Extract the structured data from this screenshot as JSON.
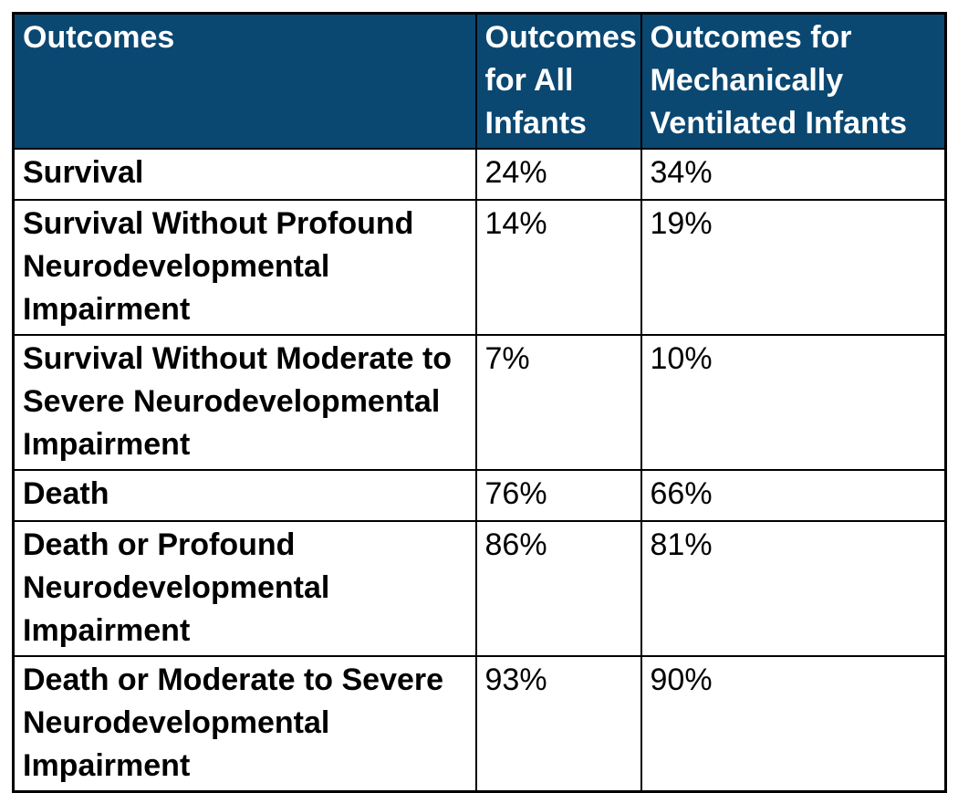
{
  "table": {
    "header": {
      "outcomes": "Outcomes",
      "all_infants": "Outcomes\nfor All\nInfants",
      "ventilated_infants": "Outcomes for\nMechanically\nVentilated Infants"
    },
    "rows": [
      {
        "outcome": "Survival",
        "all": "24%",
        "vent": "34%"
      },
      {
        "outcome": "Survival Without Profound\nNeurodevelopmental\nImpairment",
        "all": "14%",
        "vent": "19%"
      },
      {
        "outcome": "Survival Without Moderate to\nSevere Neurodevelopmental\nImpairment",
        "all": "7%",
        "vent": "10%"
      },
      {
        "outcome": "Death",
        "all": "76%",
        "vent": "66%"
      },
      {
        "outcome": "Death or Profound\nNeurodevelopmental\nImpairment",
        "all": "86%",
        "vent": "81%"
      },
      {
        "outcome": "Death or Moderate to Severe\nNeurodevelopmental\nImpairment",
        "all": "93%",
        "vent": "90%"
      }
    ],
    "colors": {
      "header_background": "#0a4872",
      "header_text": "#ffffff",
      "body_text": "#000000",
      "border": "#000000",
      "page_background": "#ffffff"
    }
  },
  "chart_data": {
    "type": "table",
    "columns": [
      "Outcomes",
      "Outcomes for All Infants",
      "Outcomes for Mechanically Ventilated Infants"
    ],
    "rows": [
      [
        "Survival",
        "24%",
        "34%"
      ],
      [
        "Survival Without Profound Neurodevelopmental Impairment",
        "14%",
        "19%"
      ],
      [
        "Survival Without Moderate to Severe Neurodevelopmental Impairment",
        "7%",
        "10%"
      ],
      [
        "Death",
        "76%",
        "66%"
      ],
      [
        "Death or Profound Neurodevelopmental Impairment",
        "86%",
        "81%"
      ],
      [
        "Death or Moderate to Severe Neurodevelopmental Impairment",
        "93%",
        "90%"
      ]
    ],
    "series": [
      {
        "name": "Outcomes for All Infants",
        "values": [
          24,
          14,
          7,
          76,
          86,
          93
        ]
      },
      {
        "name": "Outcomes for Mechanically Ventilated Infants",
        "values": [
          34,
          19,
          10,
          66,
          81,
          90
        ]
      }
    ],
    "categories": [
      "Survival",
      "Survival Without Profound Neurodevelopmental Impairment",
      "Survival Without Moderate to Severe Neurodevelopmental Impairment",
      "Death",
      "Death or Profound Neurodevelopmental Impairment",
      "Death or Moderate to Severe Neurodevelopmental Impairment"
    ],
    "unit": "%"
  }
}
